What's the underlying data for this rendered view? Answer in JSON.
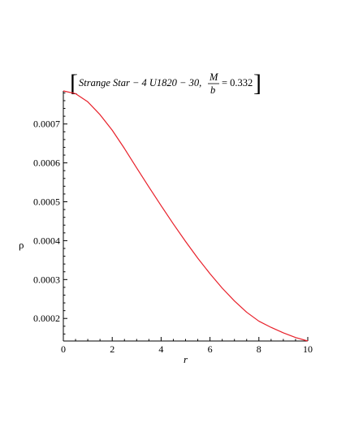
{
  "chart_data": {
    "type": "line",
    "title": {
      "main": "Strange Star − 4 U1820 − 30,",
      "frac_num": "M",
      "frac_den": "b",
      "tail": "= 0.332"
    },
    "xlabel": "r",
    "ylabel": "ρ",
    "xlim": [
      0,
      10
    ],
    "ylim": [
      0.000142,
      0.000785
    ],
    "x_ticks": [
      "0",
      "2",
      "4",
      "6",
      "8",
      "10"
    ],
    "x_tick_values": [
      0,
      2,
      4,
      6,
      8,
      10
    ],
    "y_ticks": [
      "0.0002",
      "0.0003",
      "0.0004",
      "0.0005",
      "0.0006",
      "0.0007"
    ],
    "y_tick_values": [
      0.0002,
      0.0003,
      0.0004,
      0.0005,
      0.0006,
      0.0007
    ],
    "grid": false,
    "legend": "none",
    "series": [
      {
        "color": "#e8202a",
        "x": [
          0,
          0.5,
          1,
          1.5,
          2,
          2.5,
          3,
          3.5,
          4,
          4.5,
          5,
          5.5,
          6,
          6.5,
          7,
          7.5,
          8,
          8.5,
          9,
          9.5,
          10
        ],
        "y": [
          0.000785,
          0.000778,
          0.000757,
          0.000724,
          0.000684,
          0.000637,
          0.000587,
          0.000538,
          0.00049,
          0.000443,
          0.000398,
          0.000355,
          0.000315,
          0.000278,
          0.000245,
          0.000216,
          0.000193,
          0.000177,
          0.000163,
          0.000151,
          0.000142
        ]
      }
    ]
  }
}
